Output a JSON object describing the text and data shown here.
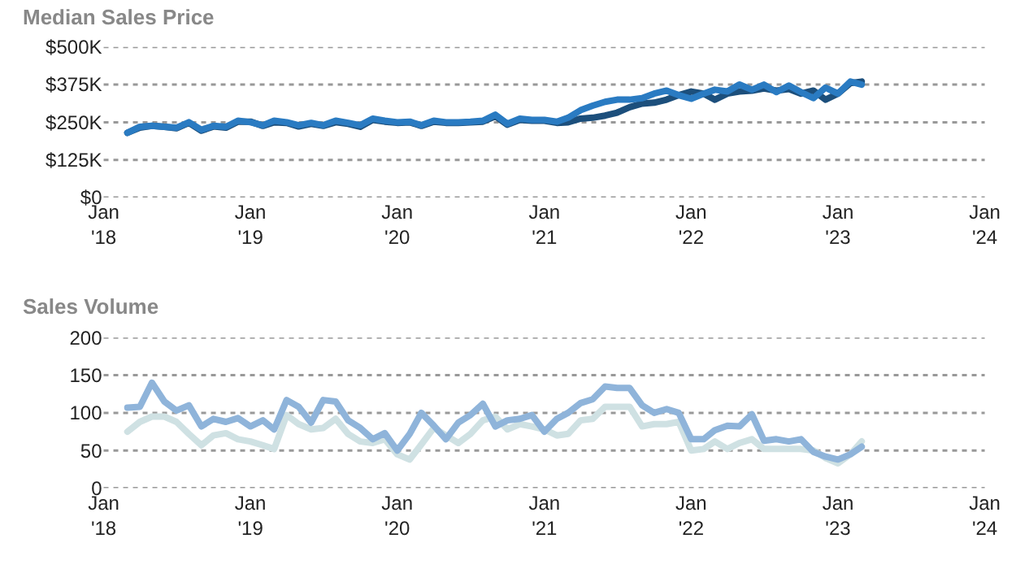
{
  "chart_data": [
    {
      "type": "line",
      "title": "Median Sales Price",
      "x": [
        "2018-03",
        "2018-04",
        "2018-05",
        "2018-06",
        "2018-07",
        "2018-08",
        "2018-09",
        "2018-10",
        "2018-11",
        "2018-12",
        "2019-01",
        "2019-02",
        "2019-03",
        "2019-04",
        "2019-05",
        "2019-06",
        "2019-07",
        "2019-08",
        "2019-09",
        "2019-10",
        "2019-11",
        "2019-12",
        "2020-01",
        "2020-02",
        "2020-03",
        "2020-04",
        "2020-05",
        "2020-06",
        "2020-07",
        "2020-08",
        "2020-09",
        "2020-10",
        "2020-11",
        "2020-12",
        "2021-01",
        "2021-02",
        "2021-03",
        "2021-04",
        "2021-05",
        "2021-06",
        "2021-07",
        "2021-08",
        "2021-09",
        "2021-10",
        "2021-11",
        "2021-12",
        "2022-01",
        "2022-02",
        "2022-03",
        "2022-04",
        "2022-05",
        "2022-06",
        "2022-07",
        "2022-08",
        "2022-09",
        "2022-10",
        "2022-11",
        "2022-12",
        "2023-01",
        "2023-02",
        "2023-03"
      ],
      "xlim": [
        "2018-01",
        "2024-01"
      ],
      "xticks": [
        {
          "value": "2018-01",
          "label": "Jan\n'18"
        },
        {
          "value": "2019-01",
          "label": "Jan\n'19"
        },
        {
          "value": "2020-01",
          "label": "Jan\n'20"
        },
        {
          "value": "2021-01",
          "label": "Jan\n'21"
        },
        {
          "value": "2022-01",
          "label": "Jan\n'22"
        },
        {
          "value": "2023-01",
          "label": "Jan\n'23"
        },
        {
          "value": "2024-01",
          "label": "Jan\n'24"
        }
      ],
      "ylim": [
        0,
        500000
      ],
      "yticks": [
        {
          "value": 0,
          "label": "$0"
        },
        {
          "value": 125000,
          "label": "$125K"
        },
        {
          "value": 250000,
          "label": "$250K"
        },
        {
          "value": 375000,
          "label": "$375K"
        },
        {
          "value": 500000,
          "label": "$500K"
        }
      ],
      "grid": "y",
      "marker": "none",
      "line_style": "solid",
      "series": [
        {
          "color": "#1c4f7c",
          "values": [
            215000,
            232000,
            238000,
            235000,
            230000,
            248000,
            222000,
            236000,
            232000,
            252000,
            252000,
            238000,
            250000,
            248000,
            236000,
            245000,
            238000,
            250000,
            245000,
            235000,
            258000,
            252000,
            248000,
            250000,
            238000,
            252000,
            248000,
            248000,
            250000,
            252000,
            270000,
            242000,
            258000,
            255000,
            255000,
            248000,
            250000,
            262000,
            265000,
            272000,
            282000,
            300000,
            312000,
            315000,
            325000,
            340000,
            352000,
            345000,
            325000,
            345000,
            352000,
            355000,
            362000,
            355000,
            360000,
            345000,
            355000,
            325000,
            345000,
            380000,
            385000
          ]
        },
        {
          "color": "#2a7bc2",
          "values": [
            215000,
            235000,
            238000,
            235000,
            232000,
            250000,
            225000,
            238000,
            235000,
            255000,
            250000,
            240000,
            255000,
            250000,
            240000,
            248000,
            240000,
            255000,
            248000,
            240000,
            262000,
            255000,
            250000,
            252000,
            240000,
            255000,
            250000,
            250000,
            252000,
            255000,
            275000,
            245000,
            262000,
            258000,
            258000,
            252000,
            265000,
            290000,
            305000,
            318000,
            325000,
            325000,
            330000,
            345000,
            355000,
            340000,
            328000,
            345000,
            358000,
            352000,
            375000,
            358000,
            375000,
            350000,
            372000,
            350000,
            330000,
            365000,
            345000,
            385000,
            375000
          ]
        }
      ]
    },
    {
      "type": "line",
      "title": "Sales Volume",
      "x": [
        "2018-03",
        "2018-04",
        "2018-05",
        "2018-06",
        "2018-07",
        "2018-08",
        "2018-09",
        "2018-10",
        "2018-11",
        "2018-12",
        "2019-01",
        "2019-02",
        "2019-03",
        "2019-04",
        "2019-05",
        "2019-06",
        "2019-07",
        "2019-08",
        "2019-09",
        "2019-10",
        "2019-11",
        "2019-12",
        "2020-01",
        "2020-02",
        "2020-03",
        "2020-04",
        "2020-05",
        "2020-06",
        "2020-07",
        "2020-08",
        "2020-09",
        "2020-10",
        "2020-11",
        "2020-12",
        "2021-01",
        "2021-02",
        "2021-03",
        "2021-04",
        "2021-05",
        "2021-06",
        "2021-07",
        "2021-08",
        "2021-09",
        "2021-10",
        "2021-11",
        "2021-12",
        "2022-01",
        "2022-02",
        "2022-03",
        "2022-04",
        "2022-05",
        "2022-06",
        "2022-07",
        "2022-08",
        "2022-09",
        "2022-10",
        "2022-11",
        "2022-12",
        "2023-01",
        "2023-02",
        "2023-03"
      ],
      "xlim": [
        "2018-01",
        "2024-01"
      ],
      "xticks": [
        {
          "value": "2018-01",
          "label": "Jan\n'18"
        },
        {
          "value": "2019-01",
          "label": "Jan\n'19"
        },
        {
          "value": "2020-01",
          "label": "Jan\n'20"
        },
        {
          "value": "2021-01",
          "label": "Jan\n'21"
        },
        {
          "value": "2022-01",
          "label": "Jan\n'22"
        },
        {
          "value": "2023-01",
          "label": "Jan\n'23"
        },
        {
          "value": "2024-01",
          "label": "Jan\n'24"
        }
      ],
      "ylim": [
        0,
        200
      ],
      "yticks": [
        0,
        50,
        100,
        150,
        200
      ],
      "grid": "y",
      "marker": "none",
      "line_style": "solid",
      "series": [
        {
          "color": "#cfe1e3",
          "values": [
            75,
            88,
            95,
            95,
            88,
            72,
            57,
            70,
            73,
            65,
            62,
            57,
            52,
            97,
            85,
            78,
            80,
            92,
            72,
            62,
            60,
            65,
            45,
            38,
            58,
            80,
            70,
            60,
            72,
            90,
            95,
            78,
            85,
            82,
            78,
            70,
            72,
            90,
            92,
            108,
            108,
            108,
            82,
            85,
            85,
            88,
            50,
            52,
            62,
            52,
            60,
            65,
            52,
            52,
            52,
            52,
            50,
            40,
            33,
            45,
            62
          ]
        },
        {
          "color": "#8fb4da",
          "values": [
            107,
            108,
            140,
            115,
            103,
            110,
            82,
            92,
            88,
            93,
            82,
            90,
            78,
            117,
            108,
            87,
            117,
            115,
            90,
            80,
            65,
            73,
            50,
            72,
            100,
            83,
            65,
            87,
            97,
            112,
            82,
            90,
            92,
            97,
            75,
            92,
            100,
            113,
            118,
            135,
            133,
            133,
            110,
            100,
            105,
            100,
            65,
            65,
            77,
            83,
            82,
            98,
            63,
            65,
            62,
            65,
            48,
            42,
            38,
            45,
            55
          ]
        }
      ]
    }
  ]
}
